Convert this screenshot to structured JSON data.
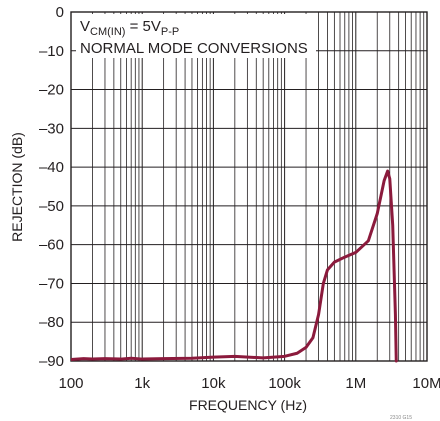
{
  "chart_data": {
    "type": "line",
    "xscale": "log",
    "xlim": [
      100,
      10000000
    ],
    "ylim": [
      -90,
      0
    ],
    "xlabel": "FREQUENCY (Hz)",
    "ylabel": "REJECTION (dB)",
    "x_ticks": [
      {
        "value": 100,
        "label": "100"
      },
      {
        "value": 1000,
        "label": "1k"
      },
      {
        "value": 10000,
        "label": "10k"
      },
      {
        "value": 100000,
        "label": "100k"
      },
      {
        "value": 1000000,
        "label": "1M"
      },
      {
        "value": 10000000,
        "label": "10M"
      }
    ],
    "y_ticks": [
      {
        "value": 0,
        "label": "0"
      },
      {
        "value": -10,
        "label": "–10"
      },
      {
        "value": -20,
        "label": "–20"
      },
      {
        "value": -30,
        "label": "–30"
      },
      {
        "value": -40,
        "label": "–40"
      },
      {
        "value": -50,
        "label": "–50"
      },
      {
        "value": -60,
        "label": "–60"
      },
      {
        "value": -70,
        "label": "–70"
      },
      {
        "value": -80,
        "label": "–80"
      },
      {
        "value": -90,
        "label": "–90"
      }
    ],
    "grid": true,
    "annotation": {
      "line1_prefix": "V",
      "line1_sub1": "CM(IN)",
      "line1_mid": " = 5V",
      "line1_sub2": "P-P",
      "line2": "NORMAL MODE CONVERSIONS"
    },
    "series": [
      {
        "color": "#8b1a3c",
        "x": [
          100,
          150,
          200,
          300,
          500,
          700,
          1000,
          2000,
          5000,
          10000,
          20000,
          50000,
          100000,
          150000,
          200000,
          250000,
          300000,
          350000,
          400000,
          500000,
          700000,
          1000000,
          1500000,
          2000000,
          2500000,
          2800000,
          3000000,
          3300000,
          3600000,
          3700000
        ],
        "y": [
          -89.6,
          -89.4,
          -89.5,
          -89.4,
          -89.5,
          -89.3,
          -89.5,
          -89.4,
          -89.3,
          -89.0,
          -88.8,
          -89.2,
          -88.8,
          -88.0,
          -86.5,
          -84.0,
          -78.0,
          -70.0,
          -66.5,
          -64.5,
          -63.2,
          -62.0,
          -59.0,
          -52.0,
          -43.5,
          -41.0,
          -43.0,
          -55.0,
          -78.0,
          -90.0
        ]
      }
    ],
    "figure_id": "2310 G15"
  }
}
